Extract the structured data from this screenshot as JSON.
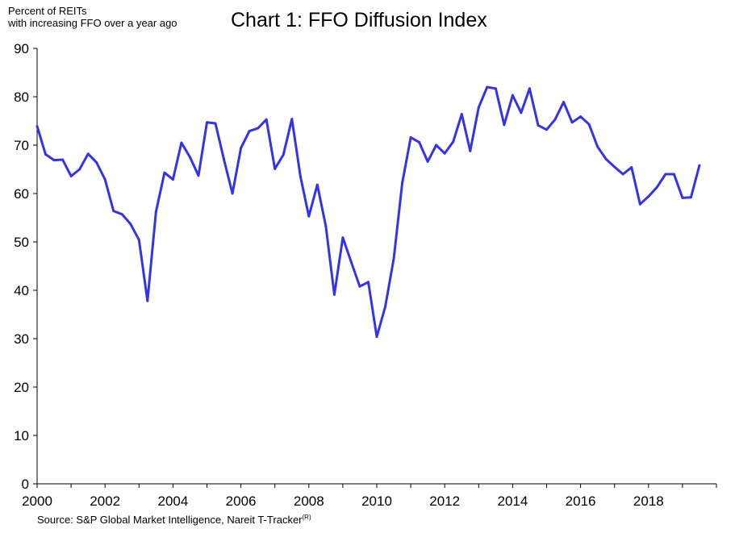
{
  "title": "Chart 1: FFO Diffusion Index",
  "ylabel_lines": [
    "Percent of REITs",
    "with increasing FFO over a year ago"
  ],
  "source": {
    "text": "Source: S&P Global Market Intelligence, Nareit T-Tracker",
    "superscript": "(R)"
  },
  "chart_data": {
    "type": "line",
    "title": "Chart 1: FFO Diffusion Index",
    "ylabel": "Percent of REITs with increasing FFO over a year ago",
    "xlabel": "",
    "xlim": [
      2000,
      2020
    ],
    "ylim": [
      0,
      90
    ],
    "x_ticks": [
      "2000",
      "2002",
      "2004",
      "2006",
      "2008",
      "2010",
      "2012",
      "2014",
      "2016",
      "2018"
    ],
    "y_ticks": [
      "0",
      "10",
      "20",
      "30",
      "40",
      "50",
      "60",
      "70",
      "80",
      "90"
    ],
    "grid": false,
    "line_color": "#3333ee",
    "series": [
      {
        "x": [
          2000.0,
          2000.25,
          2000.5,
          2000.75,
          2001.0,
          2001.25,
          2001.5,
          2001.75,
          2002.0,
          2002.25,
          2002.5,
          2002.75,
          2003.0,
          2003.25,
          2003.5,
          2003.75,
          2004.0,
          2004.25,
          2004.5,
          2004.75,
          2005.0,
          2005.25,
          2005.5,
          2005.75,
          2006.0,
          2006.25,
          2006.5,
          2006.75,
          2007.0,
          2007.25,
          2007.5,
          2007.75,
          2008.0,
          2008.25,
          2008.5,
          2008.75,
          2009.0,
          2009.25,
          2009.5,
          2009.75,
          2010.0,
          2010.25,
          2010.5,
          2010.75,
          2011.0,
          2011.25,
          2011.5,
          2011.75,
          2012.0,
          2012.25,
          2012.5,
          2012.75,
          2013.0,
          2013.25,
          2013.5,
          2013.75,
          2014.0,
          2014.25,
          2014.5,
          2014.75,
          2015.0,
          2015.25,
          2015.5,
          2015.75,
          2016.0,
          2016.25,
          2016.5,
          2016.75,
          2017.0,
          2017.25,
          2017.5,
          2017.75,
          2018.0,
          2018.25,
          2018.5,
          2018.75,
          2019.0,
          2019.25,
          2019.5
        ],
        "values": [
          73.9,
          68.1,
          66.9,
          67.0,
          63.6,
          65.0,
          68.2,
          66.4,
          62.9,
          56.4,
          55.7,
          53.7,
          50.4,
          37.8,
          56.2,
          64.3,
          62.9,
          70.5,
          67.5,
          63.7,
          74.7,
          74.5,
          67.0,
          60.0,
          69.4,
          72.9,
          73.5,
          75.3,
          65.1,
          68.0,
          75.4,
          63.6,
          55.3,
          61.8,
          53.3,
          39.1,
          50.9,
          45.8,
          40.8,
          41.7,
          30.4,
          36.6,
          46.6,
          62.2,
          71.6,
          70.6,
          66.6,
          70.0,
          68.3,
          70.7,
          76.4,
          68.8,
          77.8,
          82.0,
          81.7,
          74.2,
          80.3,
          76.7,
          81.7,
          74.1,
          73.2,
          75.3,
          78.9,
          74.7,
          75.9,
          74.3,
          69.7,
          67.1,
          65.5,
          64.0,
          65.4,
          57.8,
          59.4,
          61.3,
          64.0,
          64.0,
          59.1,
          59.2,
          65.8
        ]
      }
    ]
  }
}
